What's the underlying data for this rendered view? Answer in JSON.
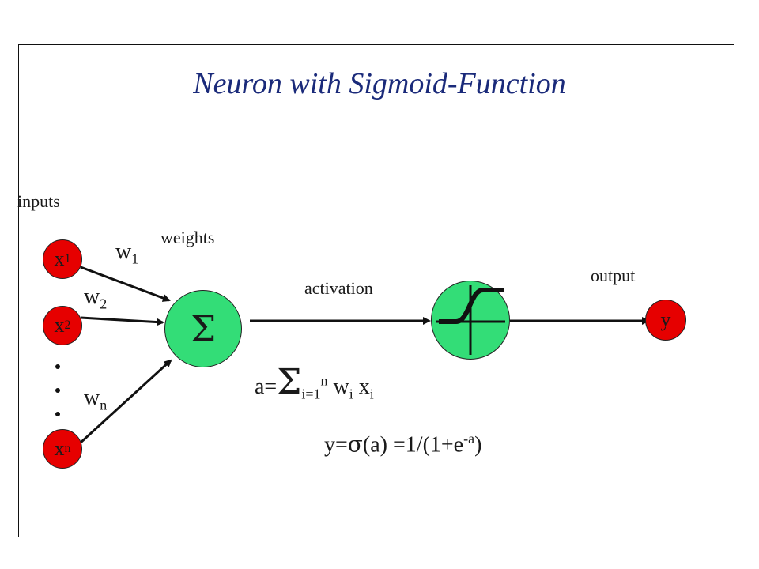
{
  "title": "Neuron with Sigmoid-Function",
  "labels": {
    "inputs": "inputs",
    "weights": "weights",
    "activation": "activation",
    "output": "output"
  },
  "inputs": [
    {
      "base": "x",
      "sub": "1"
    },
    {
      "base": "x",
      "sub": "2"
    },
    {
      "base": "x",
      "sub": "n"
    }
  ],
  "weights": [
    {
      "base": "w",
      "sub": "1"
    },
    {
      "base": "w",
      "sub": "2"
    },
    {
      "base": "w",
      "sub": "n"
    }
  ],
  "sum_symbol": "Σ",
  "output_node": "y",
  "formula_a": {
    "lhs": "a=",
    "sum": "Σ",
    "sub": "i=1",
    "sup": "n",
    "w": "w",
    "w_sub": "i",
    "x": "x",
    "x_sub": "i"
  },
  "formula_y": {
    "lhs": "y=",
    "sigma": "σ",
    "arg": "(a)",
    "rhs": " =1/(1+e",
    "sup": "-a",
    "close": ")"
  },
  "colors": {
    "input_node": "#e60000",
    "processing_node": "#33dd77",
    "title": "#1a2a7a"
  }
}
